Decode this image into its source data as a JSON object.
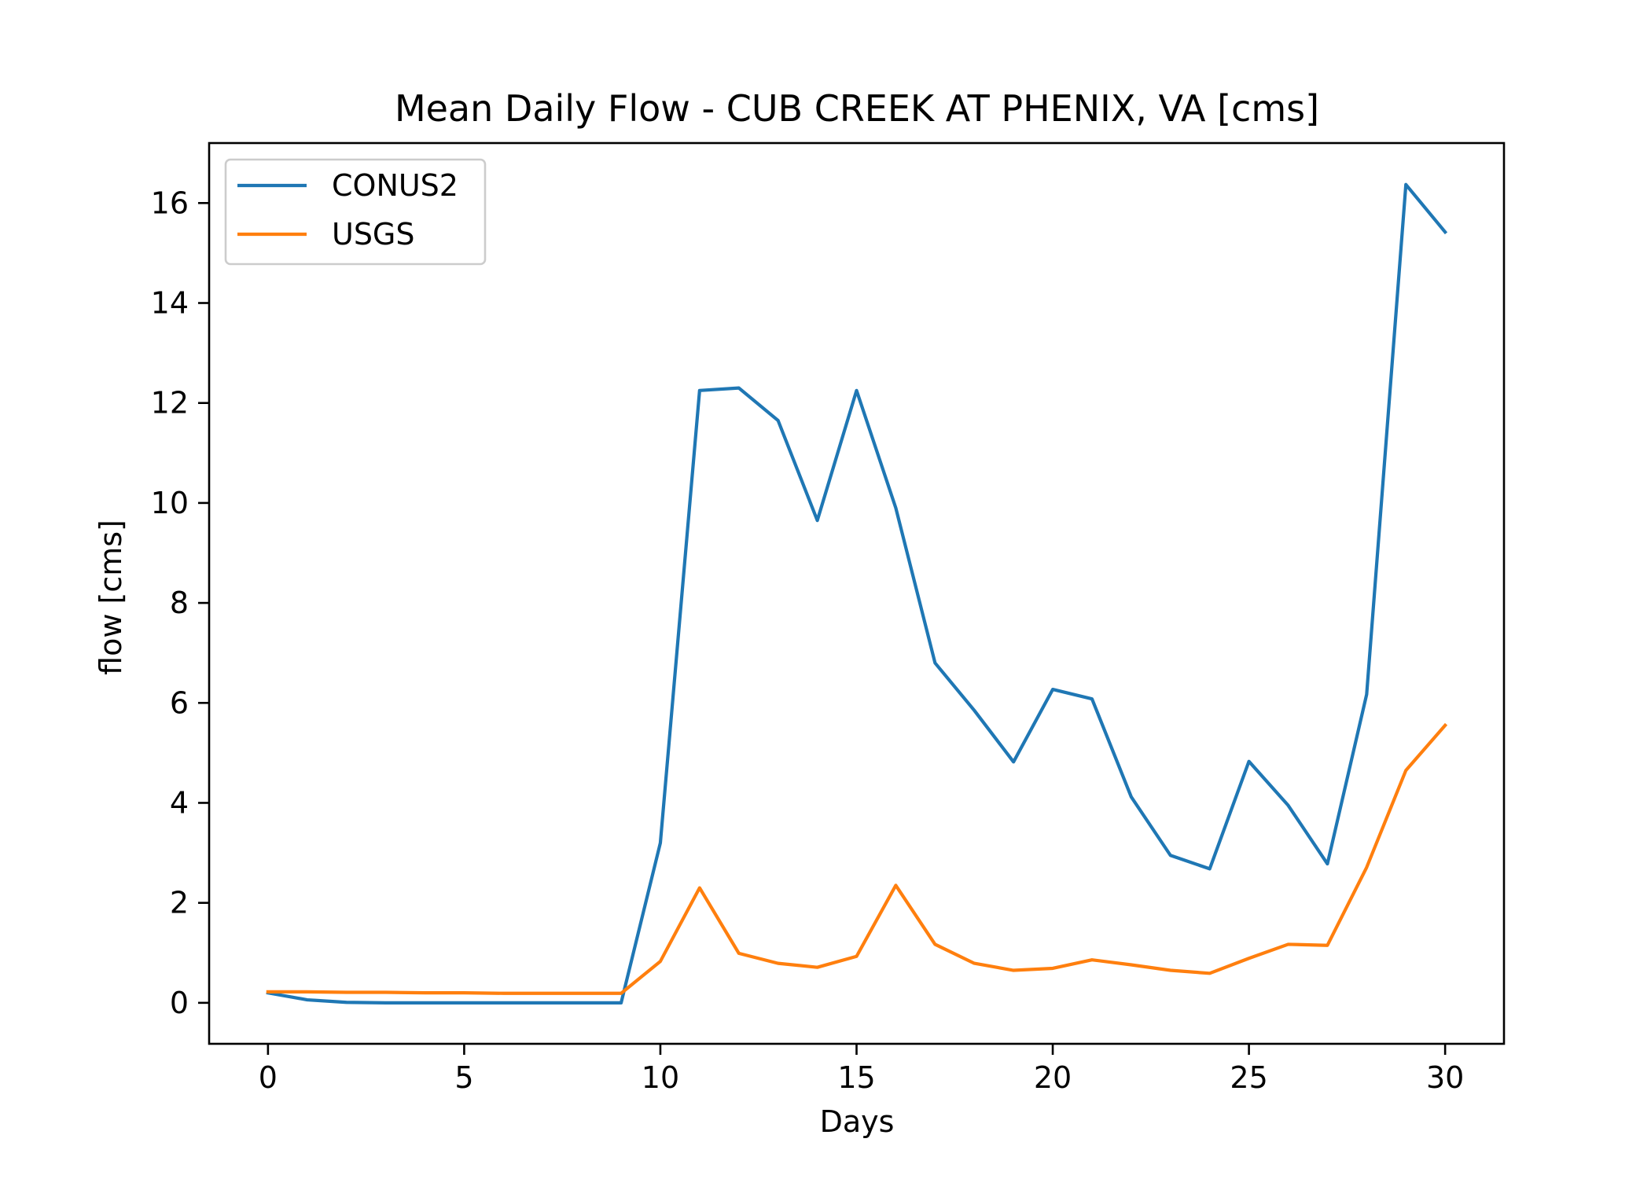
{
  "chart_data": {
    "type": "line",
    "title": "Mean Daily Flow - CUB CREEK AT PHENIX, VA [cms]",
    "xlabel": "Days",
    "ylabel": "flow [cms]",
    "xlim": [
      -1.5,
      31.5
    ],
    "ylim": [
      -0.82,
      17.2
    ],
    "xticks": [
      0,
      5,
      10,
      15,
      20,
      25,
      30
    ],
    "yticks": [
      0,
      2,
      4,
      6,
      8,
      10,
      12,
      14,
      16
    ],
    "grid": false,
    "legend_position": "upper-left",
    "x": [
      0,
      1,
      2,
      3,
      4,
      5,
      6,
      7,
      8,
      9,
      10,
      11,
      12,
      13,
      14,
      15,
      16,
      17,
      18,
      19,
      20,
      21,
      22,
      23,
      24,
      25,
      26,
      27,
      28,
      29,
      30
    ],
    "series": [
      {
        "name": "CONUS2",
        "color": "#1f77b4",
        "values": [
          0.2,
          0.06,
          0.01,
          0.0,
          0.0,
          0.0,
          0.0,
          0.0,
          0.0,
          0.0,
          3.2,
          12.25,
          12.3,
          11.65,
          9.65,
          12.25,
          9.9,
          6.8,
          5.85,
          4.82,
          6.27,
          6.08,
          4.12,
          2.95,
          2.68,
          4.83,
          3.95,
          2.78,
          6.17,
          16.37,
          15.42
        ]
      },
      {
        "name": "USGS",
        "color": "#ff7f0e",
        "values": [
          0.22,
          0.22,
          0.21,
          0.21,
          0.2,
          0.2,
          0.19,
          0.19,
          0.19,
          0.19,
          0.83,
          2.3,
          0.99,
          0.79,
          0.71,
          0.93,
          2.35,
          1.17,
          0.79,
          0.65,
          0.69,
          0.86,
          0.76,
          0.65,
          0.59,
          0.89,
          1.17,
          1.15,
          2.71,
          4.65,
          5.55
        ]
      }
    ]
  }
}
